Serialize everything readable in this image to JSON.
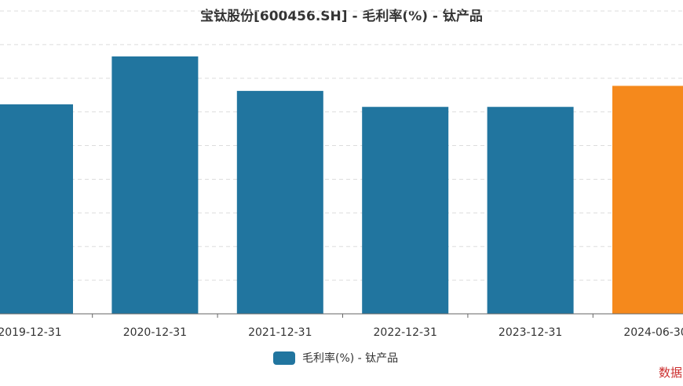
{
  "chart_data": {
    "type": "bar",
    "title": "宝钛股份[600456.SH] - 毛利率(%) - 钛产品",
    "categories": [
      "2019-12-31",
      "2020-12-31",
      "2021-12-31",
      "2022-12-31",
      "2023-12-31",
      "2024-06-30"
    ],
    "series": [
      {
        "name": "毛利率(%) - 钛产品",
        "values": [
          24.9,
          30.6,
          26.5,
          24.6,
          24.6,
          27.1
        ]
      }
    ],
    "ylim": [
      0,
      36
    ],
    "grid": true,
    "legend_position": "bottom-center",
    "colors": {
      "bar": "#21759f",
      "highlight": "#f5891c",
      "grid": "#dddddd",
      "axis": "#666666"
    },
    "highlight_index": 5
  },
  "source_note": "数据"
}
